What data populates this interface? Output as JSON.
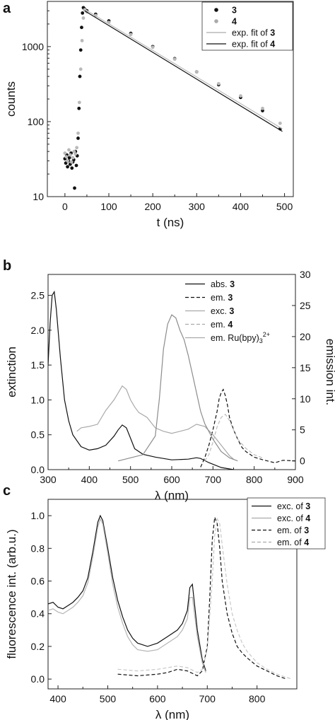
{
  "chart_data": [
    {
      "panel_label": "a",
      "type": "scatter",
      "title": "",
      "xlabel": "t (ns)",
      "ylabel": "counts",
      "xlim": [
        -40,
        520
      ],
      "ylim": [
        10,
        4000
      ],
      "yscale": "log",
      "x_ticks": [
        0,
        100,
        200,
        300,
        400,
        500
      ],
      "y_ticks": [
        10,
        100,
        1000
      ],
      "grid": false,
      "legend_position": "top-right",
      "legend": [
        {
          "label": "3",
          "bold": true,
          "style": "black-dot"
        },
        {
          "label": "4",
          "bold": true,
          "style": "grey-dot"
        },
        {
          "label_prefix": "exp. fit of ",
          "label_bold": "3",
          "style": "grey-line"
        },
        {
          "label_prefix": "exp. fit of ",
          "label_bold": "4",
          "style": "black-line"
        }
      ],
      "series": [
        {
          "name": "3",
          "kind": "points",
          "color": "#111111",
          "x": [
            0,
            2,
            4,
            6,
            8,
            10,
            12,
            14,
            16,
            18,
            20,
            22,
            24,
            26,
            28,
            30,
            32,
            34,
            36,
            38,
            40,
            42,
            44,
            46,
            50,
            70,
            100,
            150,
            200,
            250,
            300,
            350,
            400,
            450,
            490
          ],
          "y": [
            32,
            28,
            36,
            25,
            30,
            33,
            27,
            38,
            24,
            29,
            31,
            13,
            40,
            26,
            35,
            60,
            150,
            400,
            900,
            1800,
            2800,
            3300,
            3200,
            3100,
            3000,
            2700,
            2200,
            1500,
            1000,
            690,
            460,
            310,
            210,
            140,
            80
          ]
        },
        {
          "name": "4",
          "kind": "points",
          "color": "#b9b9b9",
          "x": [
            0,
            3,
            6,
            9,
            12,
            15,
            18,
            21,
            24,
            27,
            30,
            33,
            36,
            39,
            42,
            45,
            50,
            70,
            100,
            150,
            200,
            250,
            300,
            350,
            400,
            450,
            490
          ],
          "y": [
            38,
            34,
            30,
            42,
            36,
            29,
            33,
            40,
            37,
            45,
            70,
            180,
            500,
            1200,
            2400,
            3100,
            2900,
            2600,
            2100,
            1450,
            980,
            680,
            460,
            320,
            220,
            150,
            95
          ]
        },
        {
          "name": "exp. fit of 3",
          "kind": "line",
          "color": "#bdbdbd",
          "x": [
            45,
            495
          ],
          "y": [
            3150,
            80
          ]
        },
        {
          "name": "exp. fit of 4",
          "kind": "line",
          "color": "#111111",
          "x": [
            45,
            495
          ],
          "y": [
            3000,
            74
          ]
        }
      ]
    },
    {
      "panel_label": "b",
      "type": "line",
      "title": "",
      "xlabel": "λ (nm)",
      "ylabel": "extinction",
      "y2label": "emission int.",
      "xlim": [
        300,
        900
      ],
      "ylim": [
        0,
        2.8
      ],
      "y2lim": [
        -1.4,
        30
      ],
      "x_ticks": [
        300,
        400,
        500,
        600,
        700,
        800,
        900
      ],
      "y_ticks": [
        "0.0",
        "0.5",
        "1.0",
        "1.5",
        "2.0",
        "2.5"
      ],
      "y2_ticks": [
        0,
        5,
        10,
        15,
        20,
        25,
        30
      ],
      "grid": false,
      "legend_position": "top-right",
      "legend": [
        {
          "label_prefix": "abs. ",
          "label_bold": "3",
          "style": "black-line"
        },
        {
          "label_prefix": "em. ",
          "label_bold": "3",
          "style": "black-dash"
        },
        {
          "label_prefix": "exc. ",
          "label_bold": "3",
          "style": "grey-line"
        },
        {
          "label_prefix": "em. ",
          "label_bold": "4",
          "style": "grey-dash"
        },
        {
          "label_prefix": "em. Ru(bpy)",
          "label_sub": "3",
          "label_sup": "2+",
          "style": "grey-line"
        }
      ],
      "series": [
        {
          "name": "abs. 3",
          "axis": "left",
          "color": "#111111",
          "dash": "none",
          "x": [
            300,
            305,
            310,
            315,
            320,
            330,
            340,
            350,
            360,
            380,
            400,
            420,
            440,
            460,
            470,
            480,
            490,
            500,
            510,
            530,
            560,
            600,
            640,
            660,
            670,
            690,
            720,
            750
          ],
          "y": [
            1.5,
            2.1,
            2.5,
            2.55,
            2.3,
            1.6,
            1.0,
            0.7,
            0.5,
            0.33,
            0.28,
            0.3,
            0.35,
            0.48,
            0.57,
            0.64,
            0.6,
            0.45,
            0.3,
            0.22,
            0.18,
            0.14,
            0.15,
            0.17,
            0.16,
            0.1,
            0.03,
            0.0
          ]
        },
        {
          "name": "em. 3",
          "axis": "right",
          "color": "#111111",
          "dash": "5,3",
          "x": [
            670,
            680,
            690,
            700,
            710,
            715,
            720,
            725,
            730,
            735,
            740,
            750,
            760,
            770,
            780,
            800,
            820,
            850,
            870,
            900
          ],
          "y": [
            -1,
            0.5,
            2.5,
            5,
            8,
            10,
            11,
            11.5,
            10.5,
            9,
            7,
            5,
            3.5,
            2.2,
            1.5,
            0.6,
            0.2,
            -0.3,
            0.1,
            0
          ]
        },
        {
          "name": "exc. 3",
          "axis": "left",
          "color": "#a9a9a9",
          "dash": "none",
          "x": [
            370,
            380,
            400,
            420,
            440,
            460,
            470,
            480,
            490,
            500,
            510,
            520,
            540,
            560,
            580,
            600,
            620,
            640,
            660,
            680,
            700,
            720,
            740,
            750
          ],
          "y": [
            0.55,
            0.6,
            0.62,
            0.65,
            0.85,
            1.0,
            1.1,
            1.2,
            1.15,
            1.0,
            0.9,
            0.82,
            0.75,
            0.6,
            0.55,
            0.52,
            0.55,
            0.58,
            0.65,
            0.62,
            0.5,
            0.35,
            0.2,
            0.15
          ]
        },
        {
          "name": "em. 4",
          "axis": "right",
          "color": "#bcbcbc",
          "dash": "5,3",
          "x": [
            680,
            690,
            700,
            710,
            720,
            730,
            740,
            750,
            760,
            780,
            800,
            820
          ],
          "y": [
            0,
            1,
            3,
            5.5,
            7,
            7.5,
            6.5,
            5,
            3.5,
            2,
            1,
            0.5
          ]
        },
        {
          "name": "em. Ru(bpy)3 2+",
          "axis": "right",
          "color": "#8c8c8c",
          "dash": "none",
          "x": [
            470,
            500,
            530,
            560,
            570,
            580,
            590,
            600,
            610,
            620,
            630,
            640,
            650,
            660,
            670,
            680,
            700,
            720,
            740,
            760
          ],
          "y": [
            0,
            0.5,
            1,
            4,
            10,
            18,
            22,
            23.5,
            23,
            21,
            19.5,
            17,
            14,
            11,
            8,
            6,
            3.5,
            1.5,
            0.5,
            0
          ]
        }
      ]
    },
    {
      "panel_label": "c",
      "type": "line",
      "title": "",
      "xlabel": "λ (nm)",
      "ylabel": "fluorescence int. (arb.u.)",
      "xlim": [
        380,
        880
      ],
      "ylim": [
        -0.06,
        1.1
      ],
      "x_ticks": [
        400,
        500,
        600,
        700,
        800
      ],
      "y_ticks": [
        "0.0",
        "0.2",
        "0.4",
        "0.6",
        "0.8",
        "1.0"
      ],
      "grid": false,
      "legend_position": "top-right",
      "legend": [
        {
          "label_prefix": "exc. of ",
          "label_bold": "3",
          "style": "black-line"
        },
        {
          "label_prefix": "exc. of ",
          "label_bold": "4",
          "style": "grey-line"
        },
        {
          "label_prefix": "em. of ",
          "label_bold": "3",
          "style": "black-dash"
        },
        {
          "label_prefix": "em. of ",
          "label_bold": "4",
          "style": "grey-dash"
        }
      ],
      "series": [
        {
          "name": "exc. of 3",
          "color": "#111111",
          "dash": "none",
          "x": [
            380,
            390,
            400,
            410,
            420,
            430,
            440,
            450,
            460,
            470,
            480,
            485,
            490,
            500,
            510,
            520,
            530,
            540,
            550,
            560,
            580,
            600,
            620,
            640,
            650,
            660,
            665,
            670,
            680,
            690,
            697
          ],
          "y": [
            0.46,
            0.47,
            0.44,
            0.43,
            0.45,
            0.47,
            0.5,
            0.54,
            0.62,
            0.78,
            0.96,
            1.0,
            0.97,
            0.8,
            0.62,
            0.48,
            0.38,
            0.3,
            0.25,
            0.22,
            0.2,
            0.22,
            0.26,
            0.3,
            0.34,
            0.42,
            0.56,
            0.58,
            0.3,
            0.12,
            0.05
          ]
        },
        {
          "name": "exc. of 4",
          "color": "#b5b5b5",
          "dash": "none",
          "x": [
            380,
            390,
            400,
            410,
            420,
            430,
            440,
            450,
            460,
            470,
            480,
            485,
            490,
            500,
            510,
            520,
            530,
            540,
            550,
            560,
            580,
            600,
            620,
            640,
            650,
            660,
            665,
            670,
            680,
            690,
            697
          ],
          "y": [
            0.42,
            0.43,
            0.41,
            0.4,
            0.42,
            0.44,
            0.47,
            0.51,
            0.59,
            0.75,
            0.93,
            0.98,
            0.95,
            0.77,
            0.58,
            0.44,
            0.34,
            0.26,
            0.21,
            0.18,
            0.17,
            0.18,
            0.22,
            0.26,
            0.3,
            0.37,
            0.5,
            0.5,
            0.26,
            0.1,
            0.04
          ]
        },
        {
          "name": "em. of 3",
          "color": "#111111",
          "dash": "5,3",
          "x": [
            520,
            560,
            600,
            620,
            640,
            660,
            680,
            690,
            700,
            705,
            710,
            715,
            720,
            725,
            730,
            740,
            750,
            760,
            770,
            780,
            800,
            820,
            840,
            860
          ],
          "y": [
            0.03,
            0.02,
            0.03,
            0.04,
            0.06,
            0.05,
            0.02,
            0.05,
            0.2,
            0.5,
            0.85,
            0.99,
            0.95,
            0.8,
            0.6,
            0.4,
            0.28,
            0.2,
            0.16,
            0.13,
            0.08,
            0.05,
            0.02,
            0.0
          ]
        },
        {
          "name": "em. of 4",
          "color": "#c8c8c8",
          "dash": "5,3",
          "x": [
            520,
            560,
            600,
            620,
            640,
            660,
            680,
            690,
            700,
            710,
            715,
            720,
            725,
            730,
            740,
            750,
            760,
            770,
            780,
            800,
            820,
            840,
            860,
            870
          ],
          "y": [
            0.06,
            0.05,
            0.06,
            0.07,
            0.08,
            0.07,
            0.04,
            0.06,
            0.18,
            0.6,
            0.88,
            0.98,
            0.95,
            0.82,
            0.58,
            0.4,
            0.3,
            0.22,
            0.17,
            0.1,
            0.06,
            0.03,
            0.01,
            0.0
          ]
        }
      ]
    }
  ]
}
